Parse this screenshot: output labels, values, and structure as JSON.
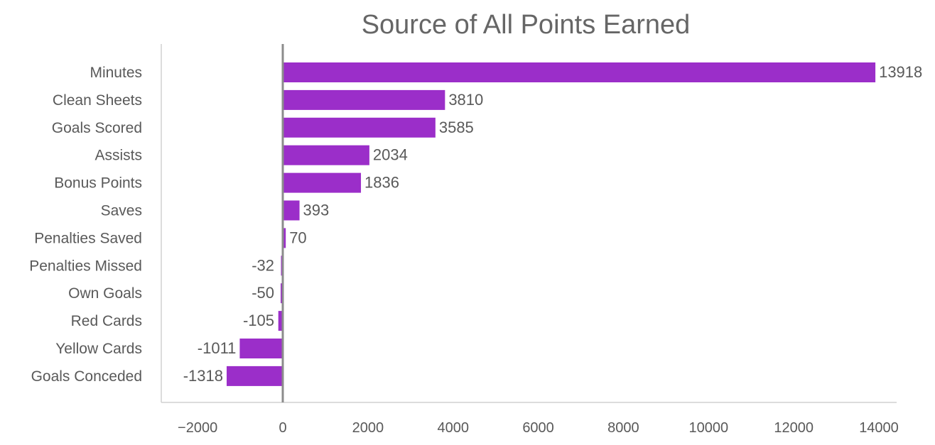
{
  "chart_data": {
    "type": "bar",
    "orientation": "horizontal",
    "title": "Source of All Points Earned",
    "xlabel": "",
    "ylabel": "",
    "categories": [
      "Minutes",
      "Clean Sheets",
      "Goals Scored",
      "Assists",
      "Bonus Points",
      "Saves",
      "Penalties Saved",
      "Penalties Missed",
      "Own Goals",
      "Red Cards",
      "Yellow Cards",
      "Goals Conceded"
    ],
    "values": [
      13918,
      3810,
      3585,
      2034,
      1836,
      393,
      70,
      -32,
      -50,
      -105,
      -1011,
      -1318
    ],
    "value_labels": [
      "13918",
      "3810",
      "3585",
      "2034",
      "1836",
      "393",
      "70",
      "-32",
      "-50",
      "-105",
      "-1011",
      "-1318"
    ],
    "xlim": [
      -2000,
      14000
    ],
    "x_ticks": [
      -2000,
      0,
      2000,
      4000,
      6000,
      8000,
      10000,
      12000,
      14000
    ],
    "x_tick_labels": [
      "−2000",
      "0",
      "2000",
      "4000",
      "6000",
      "8000",
      "10000",
      "12000",
      "14000"
    ],
    "grid": false,
    "legend": "none",
    "bar_color": "#9b2ec9"
  }
}
